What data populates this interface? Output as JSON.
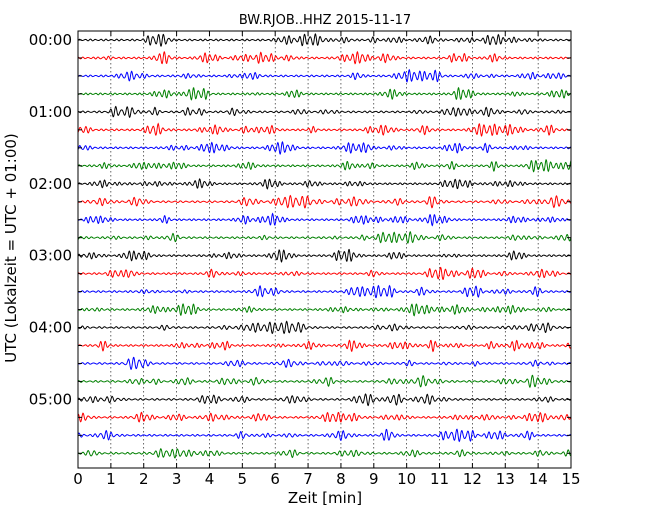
{
  "chart_data": {
    "type": "line",
    "title": "BW.RJOB..HHZ 2015-11-17",
    "xlabel": "Zeit  [min]",
    "ylabel": "UTC (Lokalzeit = UTC + 01:00)",
    "xlim": [
      0,
      15
    ],
    "x_ticks": [
      "0",
      "1",
      "2",
      "3",
      "4",
      "5",
      "6",
      "7",
      "8",
      "9",
      "10",
      "11",
      "12",
      "13",
      "14",
      "15"
    ],
    "y_tick_labels": [
      "00:00",
      "01:00",
      "02:00",
      "03:00",
      "04:00",
      "05:00"
    ],
    "trace_interval_minutes": 15,
    "trace_count": 24,
    "trace_colors": [
      "#000000",
      "#ff0000",
      "#0000ff",
      "#008000"
    ],
    "grid": "vertical dotted at each minute",
    "trace_starts": [
      "00:00",
      "00:15",
      "00:30",
      "00:45",
      "01:00",
      "01:15",
      "01:30",
      "01:45",
      "02:00",
      "02:15",
      "02:30",
      "02:45",
      "03:00",
      "03:15",
      "03:30",
      "03:45",
      "04:00",
      "04:15",
      "04:30",
      "04:45",
      "05:00",
      "05:15",
      "05:30",
      "05:45"
    ]
  }
}
